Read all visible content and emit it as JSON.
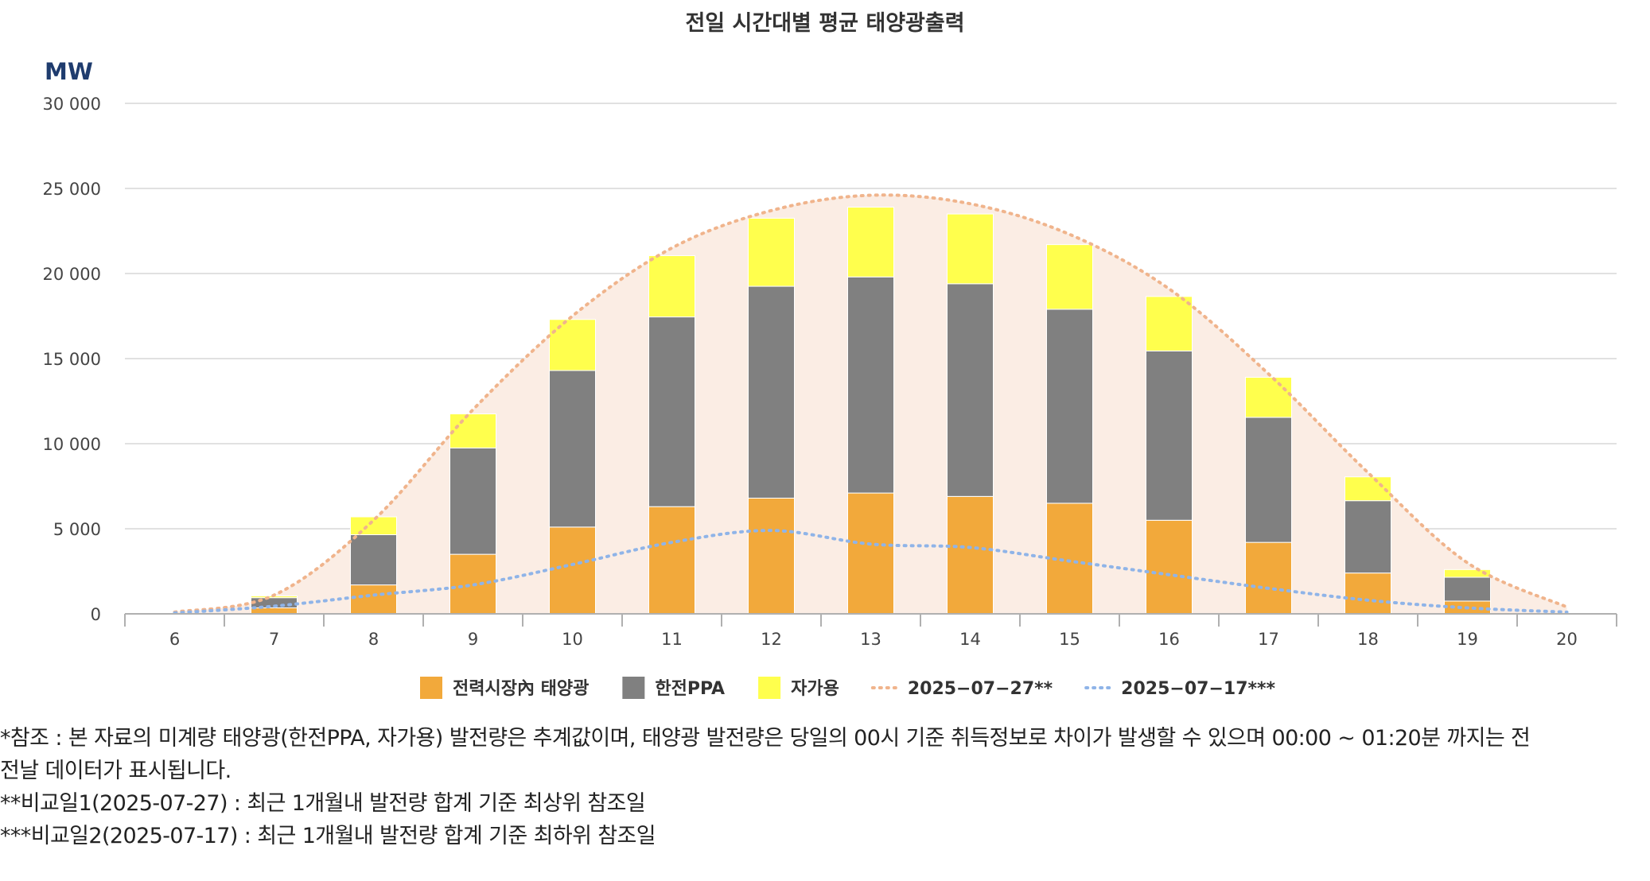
{
  "chart_data": {
    "type": "bar",
    "title": "전일 시간대별 평균 태양광출력",
    "ylabel": "MW",
    "ylim": [
      0,
      30000
    ],
    "yticks": [
      0,
      5000,
      10000,
      15000,
      20000,
      25000,
      30000
    ],
    "ytick_labels": [
      "0",
      "5 000",
      "10 000",
      "15 000",
      "20 000",
      "25 000",
      "30 000"
    ],
    "stacked": true,
    "categories": [
      "6",
      "7",
      "8",
      "9",
      "10",
      "11",
      "12",
      "13",
      "14",
      "15",
      "16",
      "17",
      "18",
      "19",
      "20"
    ],
    "series": [
      {
        "name": "전력시장內 태양광",
        "type": "bar",
        "color": "#f2a93b",
        "values": [
          0,
          350,
          1700,
          3500,
          5100,
          6300,
          6800,
          7100,
          6900,
          6500,
          5500,
          4200,
          2400,
          750,
          0
        ]
      },
      {
        "name": "한전PPA",
        "type": "bar",
        "color": "#808080",
        "values": [
          0,
          600,
          2950,
          6250,
          9200,
          11150,
          12450,
          12700,
          12500,
          11400,
          9950,
          7350,
          4250,
          1400,
          0
        ]
      },
      {
        "name": "자가용",
        "type": "bar",
        "color": "#ffff4d",
        "values": [
          0,
          100,
          1050,
          2000,
          3000,
          3600,
          4000,
          4100,
          4100,
          3800,
          3200,
          2350,
          1400,
          450,
          0
        ]
      },
      {
        "name": "2025−07−27**",
        "type": "line",
        "color": "#f0b48c",
        "style": "dotted",
        "fill": "#fbede4",
        "values": [
          100,
          1100,
          5500,
          12000,
          17500,
          21500,
          23700,
          24600,
          24100,
          22300,
          19100,
          14100,
          8300,
          3000,
          400
        ]
      },
      {
        "name": "2025−07−17***",
        "type": "line",
        "color": "#8fb4e8",
        "style": "dotted",
        "values": [
          50,
          450,
          1100,
          1700,
          2900,
          4200,
          4900,
          4100,
          3900,
          3100,
          2300,
          1500,
          800,
          350,
          100
        ]
      }
    ],
    "grid": true,
    "legend_position": "bottom"
  },
  "notes": [
    "*참조 : 본 자료의 미계량 태양광(한전PPA, 자가용) 발전량은 추계값이며, 태양광 발전량은 당일의 00시 기준 취득정보로 차이가 발생할 수 있으며 00:00 ~ 01:20분 까지는 전",
    "전날 데이터가 표시됩니다.",
    "**비교일1(2025-07-27) : 최근 1개월내 발전량 합계 기준 최상위 참조일",
    "***비교일2(2025-07-17) : 최근 1개월내 발전량 합계 기준 최하위 참조일"
  ]
}
